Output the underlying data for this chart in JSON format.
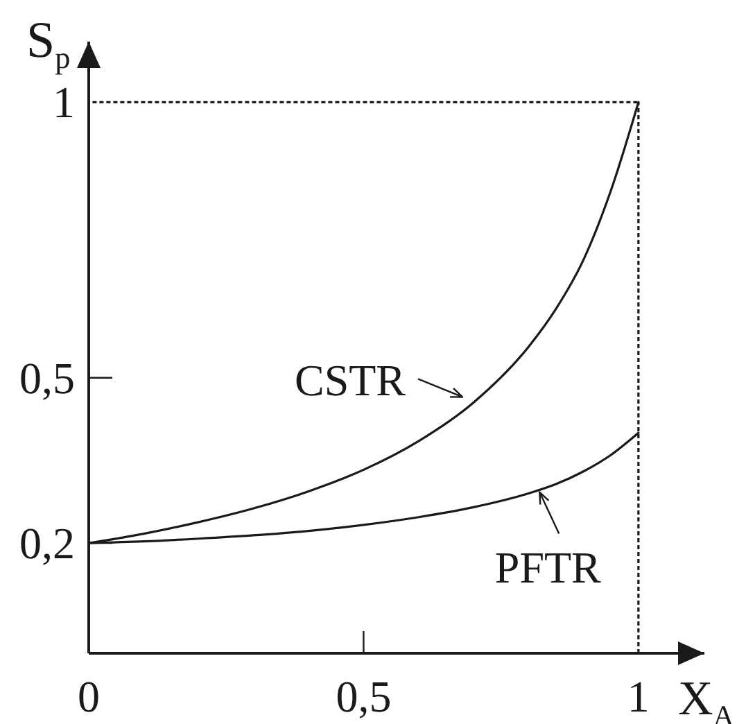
{
  "chart_data": {
    "type": "line",
    "xlabel": "X$_{A}$",
    "ylabel": "S$_{p}$",
    "x": [
      0,
      0.1,
      0.2,
      0.3,
      0.4,
      0.5,
      0.6,
      0.7,
      0.8,
      0.85,
      0.9,
      0.95,
      1
    ],
    "series": [
      {
        "name": "CSTR",
        "color": "#1a1a1a",
        "values": [
          0.2,
          0.217,
          0.238,
          0.263,
          0.294,
          0.333,
          0.385,
          0.455,
          0.556,
          0.625,
          0.714,
          0.84,
          1
        ]
      },
      {
        "name": "PFTR",
        "color": "#1a1a1a",
        "values": [
          0.2,
          0.203,
          0.208,
          0.214,
          0.222,
          0.233,
          0.247,
          0.265,
          0.29,
          0.307,
          0.33,
          0.36,
          0.4
        ]
      }
    ],
    "xlim": [
      0,
      1.12
    ],
    "ylim": [
      0,
      1.11
    ],
    "xticks": [
      0,
      {
        "value": 0.5,
        "label": "0,5"
      },
      1
    ],
    "yticks": [
      {
        "value": 0.2,
        "label": "0,2"
      },
      {
        "value": 0.5,
        "label": "0,5"
      },
      1
    ],
    "ref_lines": [
      {
        "axis": "x",
        "value": 1,
        "line_style": "dotted",
        "color": "#1a1a1a"
      },
      {
        "axis": "y",
        "value": 1,
        "line_style": "dotted",
        "color": "#1a1a1a"
      }
    ]
  }
}
